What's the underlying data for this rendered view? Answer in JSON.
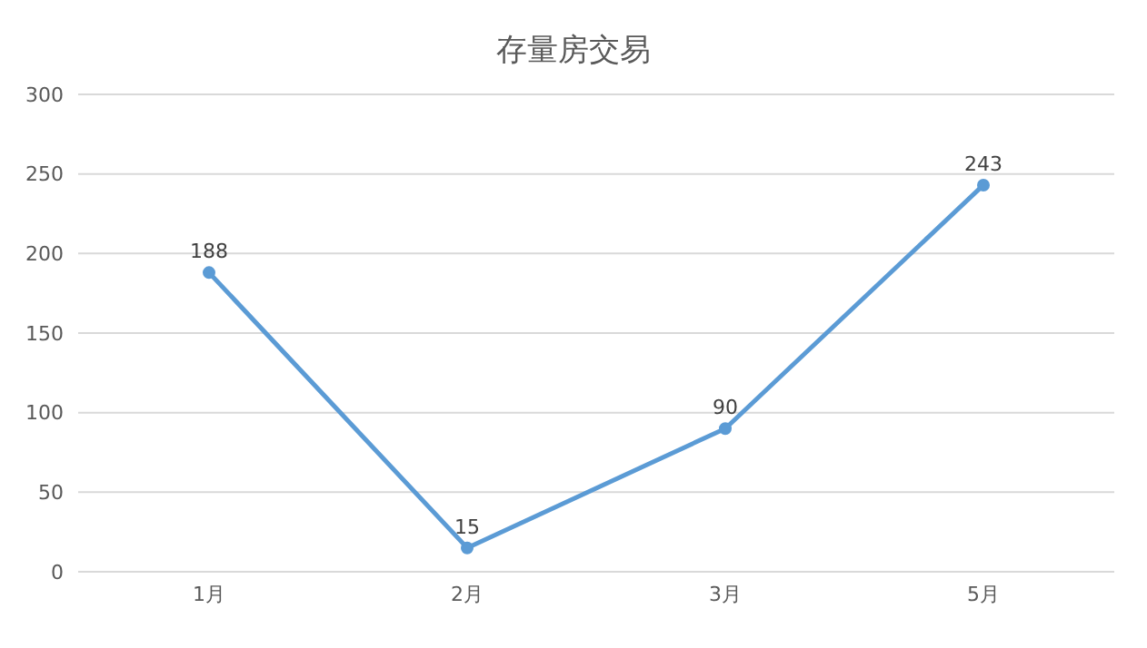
{
  "chart_data": {
    "type": "line",
    "title": "存量房交易",
    "categories": [
      "1月",
      "2月",
      "3月",
      "5月"
    ],
    "series": [
      {
        "color": "#5b9bd5",
        "values": [
          188,
          15,
          90,
          243
        ]
      }
    ],
    "ylim": [
      0,
      300
    ],
    "yticks": [
      0,
      50,
      100,
      150,
      200,
      250,
      300
    ],
    "grid": "y",
    "marker": "circle",
    "data_labels": true,
    "legend": false
  }
}
